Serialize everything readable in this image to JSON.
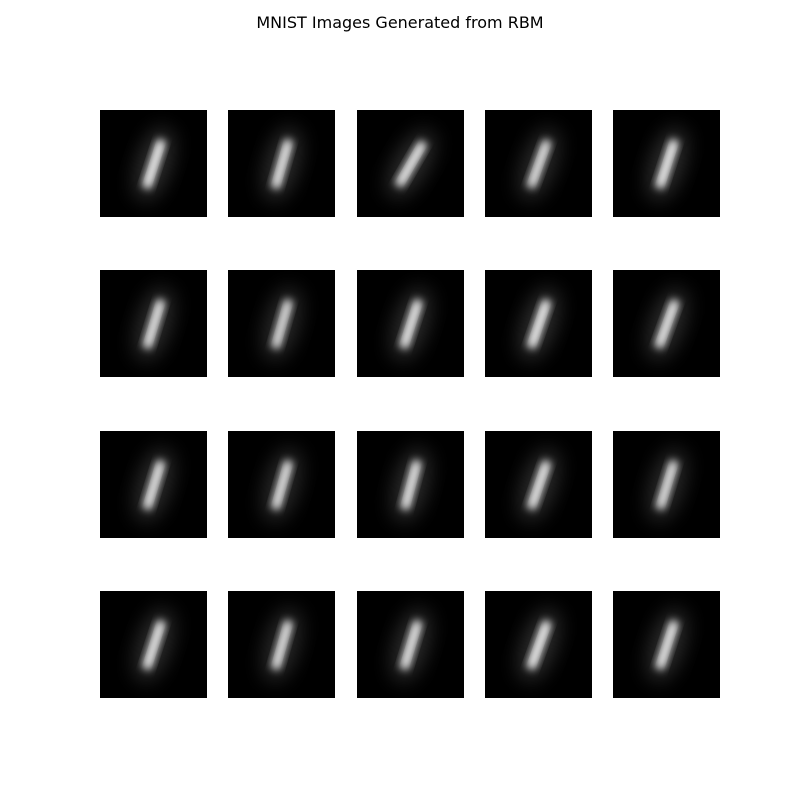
{
  "title": "MNIST Images Generated from RBM",
  "grid": {
    "rows": 4,
    "cols": 5
  },
  "samples": [
    {
      "digit": "1",
      "slant": 18,
      "brightness": 0.85
    },
    {
      "digit": "1",
      "slant": 16,
      "brightness": 0.8
    },
    {
      "digit": "1",
      "slant": 30,
      "brightness": 0.82
    },
    {
      "digit": "1",
      "slant": 20,
      "brightness": 0.78
    },
    {
      "digit": "1",
      "slant": 18,
      "brightness": 0.85
    },
    {
      "digit": "1",
      "slant": 17,
      "brightness": 0.8
    },
    {
      "digit": "1",
      "slant": 16,
      "brightness": 0.75
    },
    {
      "digit": "1",
      "slant": 18,
      "brightness": 0.82
    },
    {
      "digit": "1",
      "slant": 19,
      "brightness": 0.85
    },
    {
      "digit": "1",
      "slant": 20,
      "brightness": 0.82
    },
    {
      "digit": "1",
      "slant": 17,
      "brightness": 0.8
    },
    {
      "digit": "1",
      "slant": 16,
      "brightness": 0.78
    },
    {
      "digit": "1",
      "slant": 15,
      "brightness": 0.8
    },
    {
      "digit": "1",
      "slant": 19,
      "brightness": 0.82
    },
    {
      "digit": "1",
      "slant": 17,
      "brightness": 0.78
    },
    {
      "digit": "1",
      "slant": 18,
      "brightness": 0.82
    },
    {
      "digit": "1",
      "slant": 16,
      "brightness": 0.78
    },
    {
      "digit": "1",
      "slant": 17,
      "brightness": 0.8
    },
    {
      "digit": "1",
      "slant": 20,
      "brightness": 0.85
    },
    {
      "digit": "1",
      "slant": 18,
      "brightness": 0.82
    }
  ],
  "colors": {
    "panel_background": "#000000",
    "stroke": "#ffffff",
    "page_background": "#ffffff"
  }
}
